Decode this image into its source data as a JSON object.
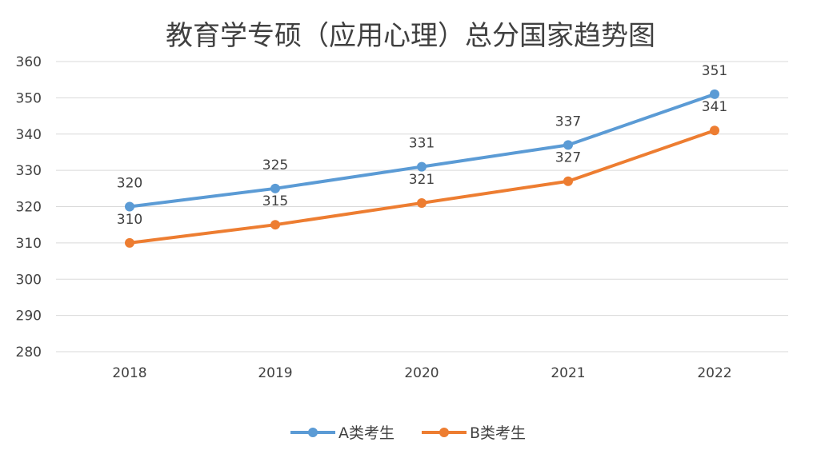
{
  "chart_data": {
    "type": "line",
    "title": "教育学专硕（应用心理）总分国家趋势图",
    "xlabel": "",
    "ylabel": "",
    "categories": [
      "2018",
      "2019",
      "2020",
      "2021",
      "2022"
    ],
    "ylim": [
      280,
      360
    ],
    "yticks": [
      "280",
      "290",
      "300",
      "310",
      "320",
      "330",
      "340",
      "350",
      "360"
    ],
    "grid": true,
    "legend_position": "bottom",
    "series": [
      {
        "name": "A类考生",
        "values": [
          320,
          325,
          331,
          337,
          351
        ],
        "color": "#5b9bd5"
      },
      {
        "name": "B类考生",
        "values": [
          310,
          315,
          321,
          327,
          341
        ],
        "color": "#ed7d31"
      }
    ]
  }
}
